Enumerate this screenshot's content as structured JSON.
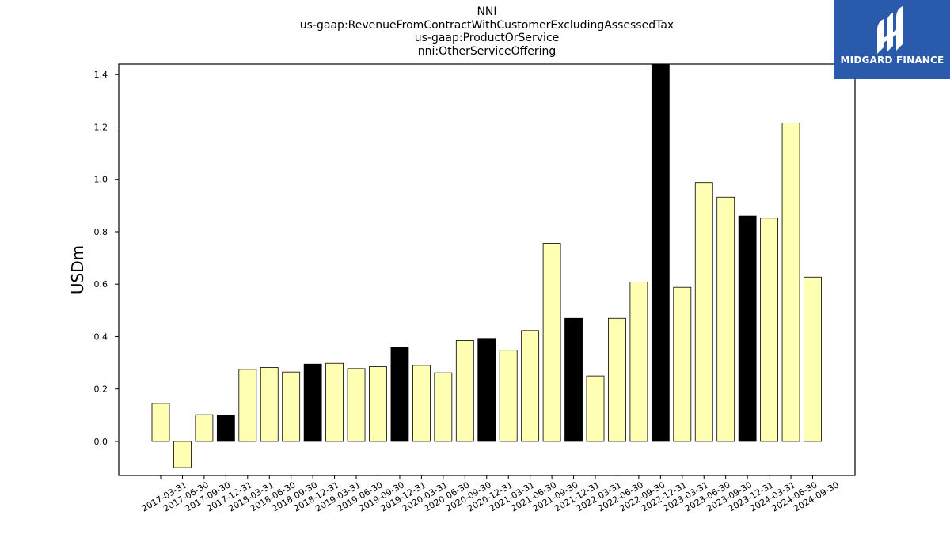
{
  "title_lines": [
    "NNI",
    "us-gaap:RevenueFromContractWithCustomerExcludingAssessedTax",
    "us-gaap:ProductOrService",
    "nni:OtherServiceOffering"
  ],
  "brand": {
    "name": "MIDGARD FINANCE",
    "background": "#2a5aab",
    "icon": "midgard-logo-icon"
  },
  "colors": {
    "bar_default": "#ffffb3",
    "bar_q4": "#000000",
    "edge": "#000000"
  },
  "chart_data": {
    "type": "bar",
    "title": "NNI us-gaap:RevenueFromContractWithCustomerExcludingAssessedTax us-gaap:ProductOrService nni:OtherServiceOffering",
    "xlabel": "",
    "ylabel": "USDm",
    "ylim": [
      -0.13,
      1.44
    ],
    "yticks": [
      0.0,
      0.2,
      0.4,
      0.6,
      0.8,
      1.0,
      1.2,
      1.4
    ],
    "grid": false,
    "categories": [
      "2017-03-31",
      "2017-06-30",
      "2017-09-30",
      "2017-12-31",
      "2018-03-31",
      "2018-06-30",
      "2018-09-30",
      "2018-12-31",
      "2019-03-31",
      "2019-06-30",
      "2019-09-30",
      "2019-12-31",
      "2020-03-31",
      "2020-06-30",
      "2020-09-30",
      "2020-12-31",
      "2021-03-31",
      "2021-06-30",
      "2021-09-30",
      "2021-12-31",
      "2022-03-31",
      "2022-06-30",
      "2022-09-30",
      "2022-12-31",
      "2023-03-31",
      "2023-06-30",
      "2023-09-30",
      "2023-12-31",
      "2024-03-31",
      "2024-06-30",
      "2024-09-30"
    ],
    "values": [
      0.145,
      -0.1,
      0.102,
      0.1,
      0.275,
      0.282,
      0.265,
      0.295,
      0.298,
      0.278,
      0.285,
      0.36,
      0.29,
      0.262,
      0.385,
      0.393,
      0.348,
      0.423,
      0.756,
      0.47,
      0.25,
      0.47,
      0.608,
      1.44,
      0.588,
      0.988,
      0.932,
      0.86,
      0.852,
      1.215,
      0.627
    ],
    "highlight": [
      false,
      false,
      false,
      true,
      false,
      false,
      false,
      true,
      false,
      false,
      false,
      true,
      false,
      false,
      false,
      true,
      false,
      false,
      false,
      true,
      false,
      false,
      false,
      true,
      false,
      false,
      false,
      true,
      false,
      false,
      false
    ]
  }
}
